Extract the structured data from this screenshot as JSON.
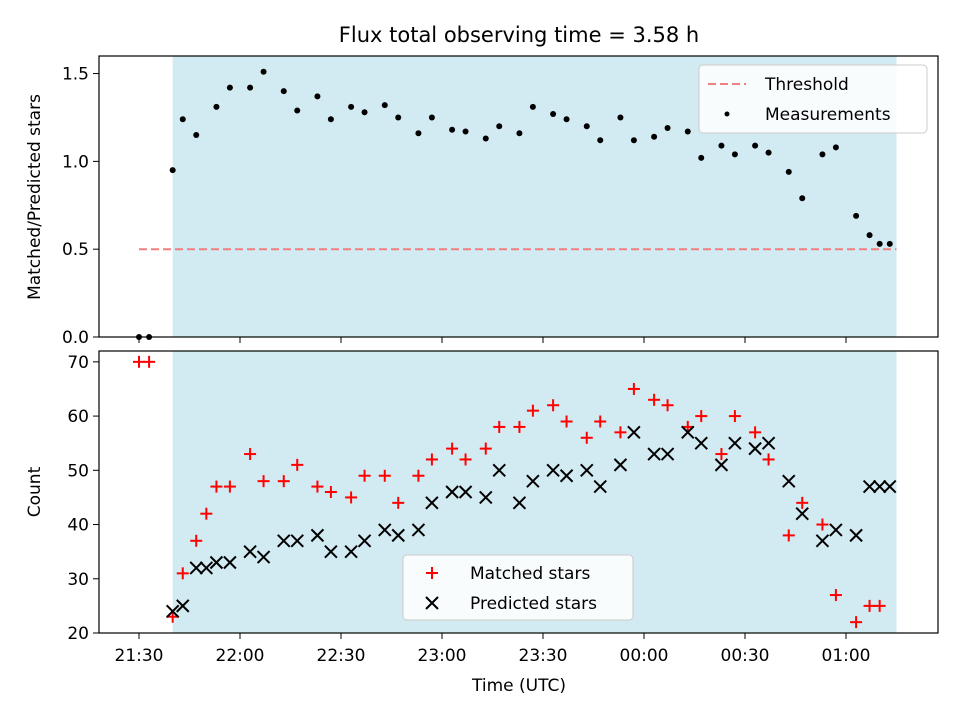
{
  "chart_data": [
    {
      "type": "scatter",
      "title": "Flux total observing time = 3.58 h",
      "ylabel": "Matched/Predicted stars",
      "xlabel": "",
      "ylim": [
        0,
        1.6
      ],
      "yticks": [
        "0.0",
        "0.5",
        "1.0",
        "1.5"
      ],
      "ytick_values": [
        0,
        0.5,
        1.0,
        1.5
      ],
      "grid": false,
      "legend_placement": "top-right",
      "shaded_region": {
        "x_start": "21:40",
        "x_end": "01:15",
        "color": "#add8e6"
      },
      "threshold": {
        "name": "Threshold",
        "value": 0.5,
        "x_start": "21:30",
        "x_end": "01:15",
        "color": "#f08080"
      },
      "series": [
        {
          "name": "Measurements",
          "color": "#000000",
          "x": [
            "21:30",
            "21:33",
            "21:40",
            "21:43",
            "21:47",
            "21:53",
            "21:57",
            "22:03",
            "22:07",
            "22:13",
            "22:17",
            "22:23",
            "22:27",
            "22:33",
            "22:37",
            "22:43",
            "22:47",
            "22:53",
            "22:57",
            "23:03",
            "23:07",
            "23:13",
            "23:17",
            "23:23",
            "23:27",
            "23:33",
            "23:37",
            "23:43",
            "23:47",
            "23:53",
            "23:57",
            "00:03",
            "00:07",
            "00:13",
            "00:17",
            "00:23",
            "00:27",
            "00:33",
            "00:37",
            "00:43",
            "00:47",
            "00:53",
            "00:57",
            "01:03",
            "01:07",
            "01:10",
            "01:13"
          ],
          "y": [
            0.0,
            0.0,
            0.95,
            1.24,
            1.15,
            1.31,
            1.42,
            1.42,
            1.51,
            1.4,
            1.29,
            1.37,
            1.24,
            1.31,
            1.28,
            1.32,
            1.25,
            1.16,
            1.25,
            1.18,
            1.17,
            1.13,
            1.2,
            1.16,
            1.31,
            1.27,
            1.24,
            1.2,
            1.12,
            1.25,
            1.12,
            1.14,
            1.19,
            1.17,
            1.02,
            1.09,
            1.04,
            1.09,
            1.05,
            0.94,
            0.79,
            1.04,
            1.08,
            0.69,
            0.58,
            0.53,
            0.53
          ]
        }
      ]
    },
    {
      "type": "scatter",
      "title": "",
      "ylabel": "Count",
      "xlabel": "Time (UTC)",
      "ylim": [
        20,
        72
      ],
      "yticks": [
        "20",
        "30",
        "40",
        "50",
        "60",
        "70"
      ],
      "ytick_values": [
        20,
        30,
        40,
        50,
        60,
        70
      ],
      "xticks": [
        "21:30",
        "22:00",
        "22:30",
        "23:00",
        "23:30",
        "00:00",
        "00:30",
        "01:00"
      ],
      "grid": false,
      "legend_placement": "bottom-center",
      "shaded_region": {
        "x_start": "21:40",
        "x_end": "01:15",
        "color": "#add8e6"
      },
      "series": [
        {
          "name": "Matched stars",
          "marker": "+",
          "color": "#ff0000",
          "x": [
            "21:30",
            "21:33",
            "21:40",
            "21:43",
            "21:47",
            "21:50",
            "21:53",
            "21:57",
            "22:03",
            "22:07",
            "22:13",
            "22:17",
            "22:23",
            "22:27",
            "22:33",
            "22:37",
            "22:43",
            "22:47",
            "22:53",
            "22:57",
            "23:03",
            "23:07",
            "23:13",
            "23:17",
            "23:23",
            "23:27",
            "23:33",
            "23:37",
            "23:43",
            "23:47",
            "23:53",
            "23:57",
            "00:03",
            "00:07",
            "00:13",
            "00:17",
            "00:23",
            "00:27",
            "00:33",
            "00:37",
            "00:43",
            "00:47",
            "00:53",
            "00:57",
            "01:03",
            "01:07",
            "01:10"
          ],
          "y": [
            70,
            70,
            23,
            31,
            37,
            42,
            47,
            47,
            53,
            48,
            48,
            51,
            47,
            46,
            45,
            49,
            49,
            44,
            49,
            52,
            54,
            52,
            54,
            58,
            58,
            61,
            62,
            59,
            56,
            59,
            57,
            65,
            63,
            62,
            58,
            60,
            53,
            60,
            57,
            52,
            38,
            44,
            40,
            27,
            22,
            25,
            25
          ]
        },
        {
          "name": "Predicted stars",
          "marker": "x",
          "color": "#000000",
          "x": [
            "21:40",
            "21:43",
            "21:47",
            "21:50",
            "21:53",
            "21:57",
            "22:03",
            "22:07",
            "22:13",
            "22:17",
            "22:23",
            "22:27",
            "22:33",
            "22:37",
            "22:43",
            "22:47",
            "22:53",
            "22:57",
            "23:03",
            "23:07",
            "23:13",
            "23:17",
            "23:23",
            "23:27",
            "23:33",
            "23:37",
            "23:43",
            "23:47",
            "23:53",
            "23:57",
            "00:03",
            "00:07",
            "00:13",
            "00:17",
            "00:23",
            "00:27",
            "00:33",
            "00:37",
            "00:43",
            "00:47",
            "00:53",
            "00:57",
            "01:03",
            "01:07",
            "01:10",
            "01:13"
          ],
          "y": [
            24,
            25,
            32,
            32,
            33,
            33,
            35,
            34,
            37,
            37,
            38,
            35,
            35,
            37,
            39,
            38,
            39,
            44,
            46,
            46,
            45,
            50,
            44,
            48,
            50,
            49,
            50,
            47,
            51,
            57,
            53,
            53,
            57,
            55,
            51,
            55,
            54,
            55,
            48,
            42,
            37,
            39,
            38,
            47,
            47,
            47
          ]
        }
      ]
    }
  ]
}
